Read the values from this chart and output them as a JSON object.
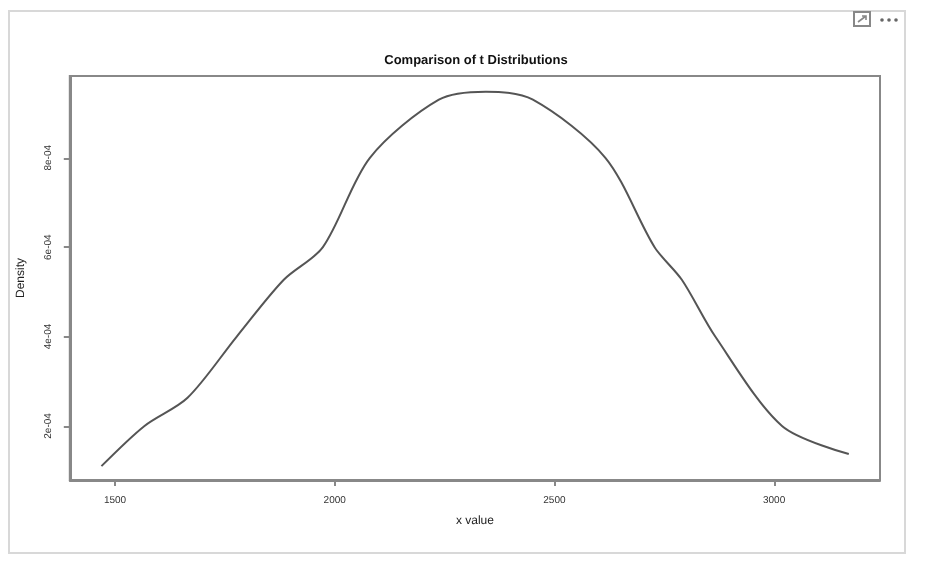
{
  "chart_data": {
    "type": "line",
    "title": "Comparison of t Distributions",
    "xlabel": "x value",
    "ylabel": "Density",
    "x": [
      1469,
      1567,
      1665,
      1777,
      1884,
      1973,
      2080,
      2237,
      2344,
      2451,
      2616,
      2728,
      2790,
      2866,
      3018,
      3170
    ],
    "series": [
      {
        "color": "#555555",
        "values": [
          0.00011,
          0.0002,
          0.000263,
          0.0004,
          0.000527,
          0.0006,
          0.0008,
          0.00093,
          0.000948,
          0.00093,
          0.0008,
          0.0006,
          0.000527,
          0.0004,
          0.0002,
          0.000137
        ]
      }
    ],
    "xlim": [
      1397,
      3241
    ],
    "xticks": [
      1500,
      2000,
      2500,
      3000
    ],
    "ylim": [
      7.9e-05,
      0.000983
    ],
    "yticks": [
      {
        "value": 0.0002,
        "label": "2e-04"
      },
      {
        "value": 0.0004,
        "label": "4e-04"
      },
      {
        "value": 0.0006,
        "label": "6e-04"
      },
      {
        "value": 0.0008,
        "label": "8e-04"
      }
    ],
    "grid": false,
    "marker": "none",
    "line_style": "solid"
  }
}
